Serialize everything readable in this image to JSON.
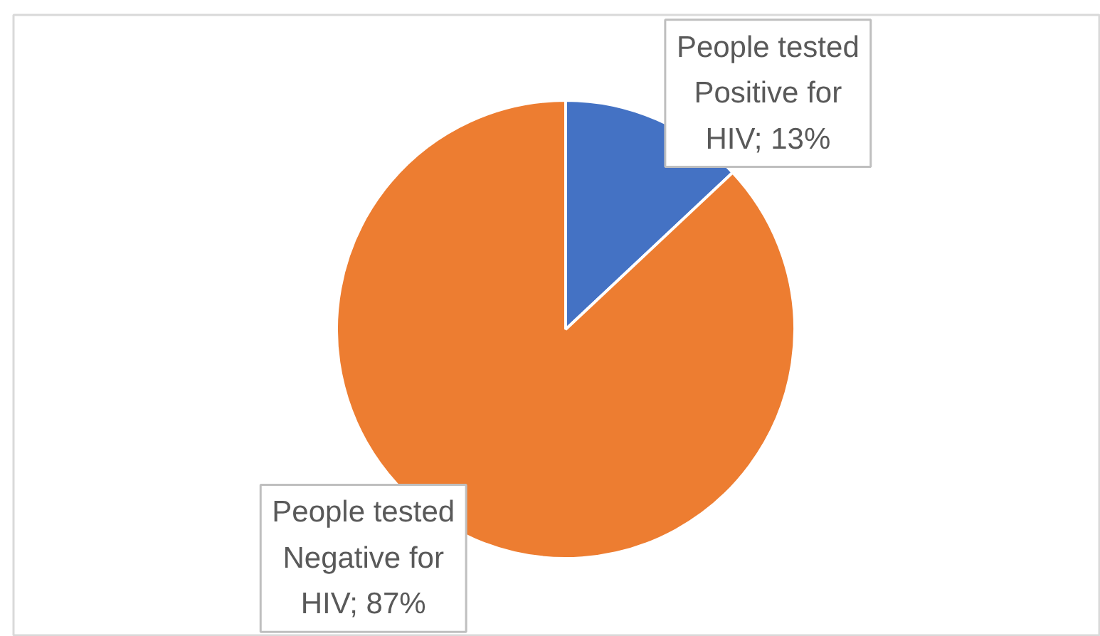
{
  "chart_data": {
    "type": "pie",
    "categories": [
      "People tested Positive for HIV",
      "People tested Negative for HIV"
    ],
    "values": [
      13,
      87
    ],
    "colors": [
      "#4472c4",
      "#ed7d31"
    ],
    "value_labels": [
      "13%",
      "87%"
    ]
  }
}
